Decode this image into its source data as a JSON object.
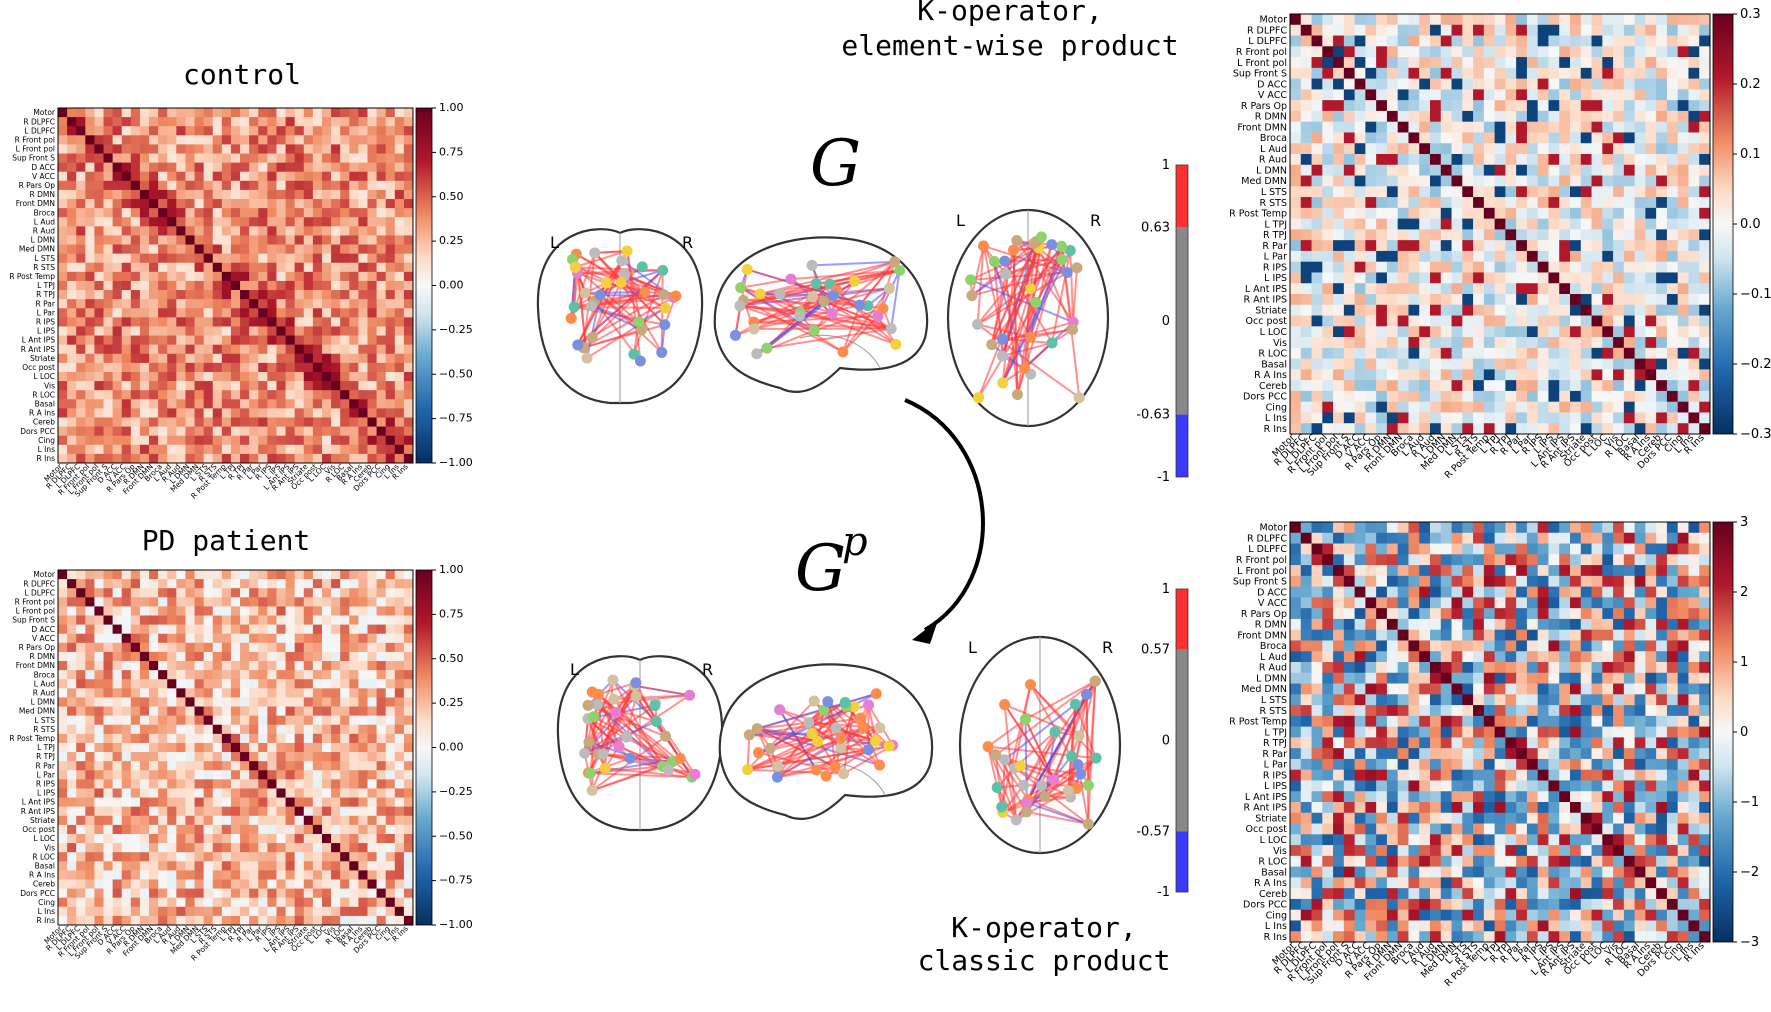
{
  "labels": [
    "Motor",
    "R DLPFC",
    "L DLPFC",
    "R Front pol",
    "L Front pol",
    "Sup Front S",
    "D ACC",
    "V ACC",
    "R Pars Op",
    "R DMN",
    "Front DMN",
    "Broca",
    "L Aud",
    "R Aud",
    "L DMN",
    "Med DMN",
    "L STS",
    "R STS",
    "R Post Temp",
    "L TPJ",
    "R TPJ",
    "R Par",
    "L Par",
    "R IPS",
    "L IPS",
    "L Ant IPS",
    "R Ant IPS",
    "Striate",
    "Occ post",
    "L LOC",
    "Vis",
    "R LOC",
    "Basal",
    "R A Ins",
    "Cereb",
    "Dors PCC",
    "Cing",
    "L Ins",
    "R Ins"
  ],
  "titles": {
    "control": "control",
    "patient": "PD patient",
    "top_right_line1": "K-operator,",
    "top_right_line2": "element-wise product",
    "bottom_right_line1": "K-operator,",
    "bottom_right_line2": "classic product",
    "graph_top": "G",
    "graph_bottom": "G",
    "graph_bottom_sup": "p"
  },
  "colorbars": {
    "control": [
      "1.00",
      "0.75",
      "0.50",
      "0.25",
      "0.00",
      "−0.25",
      "−0.50",
      "−0.75",
      "−1.00"
    ],
    "patient": [
      "1.00",
      "0.75",
      "0.50",
      "0.25",
      "0.00",
      "−0.25",
      "−0.50",
      "−0.75",
      "−1.00"
    ],
    "elementwise": [
      "0.3",
      "0.2",
      "0.1",
      "0.0",
      "−0.1",
      "−0.2",
      "−0.3"
    ],
    "classic": [
      "3",
      "2",
      "1",
      "0",
      "−1",
      "−2",
      "−3"
    ],
    "graph_top": [
      "1",
      "0.63",
      "0",
      "-0.63",
      "-1"
    ],
    "graph_bottom": [
      "1",
      "0.57",
      "0",
      "-0.57",
      "-1"
    ]
  },
  "brain_labels": {
    "left": "L",
    "right": "R"
  },
  "colors": {
    "red": "#b2182b",
    "white": "#f7f7f7",
    "blue": "#2166ac",
    "edge_pos": "#ff3a3a",
    "edge_neg": "#4a4aff"
  },
  "chart_data": [
    {
      "type": "heatmap",
      "title": "control",
      "zlim": [
        -1,
        1
      ],
      "values": "39x39 correlation matrix of labelled regions"
    },
    {
      "type": "heatmap",
      "title": "PD patient",
      "zlim": [
        -1,
        1
      ],
      "values": "39x39 correlation matrix of labelled regions"
    },
    {
      "type": "heatmap",
      "title": "K-operator, element-wise product",
      "zlim": [
        -0.3,
        0.3
      ],
      "values": "39x39"
    },
    {
      "type": "heatmap",
      "title": "K-operator, classic product",
      "zlim": [
        -3,
        3
      ],
      "values": "39x39"
    }
  ]
}
